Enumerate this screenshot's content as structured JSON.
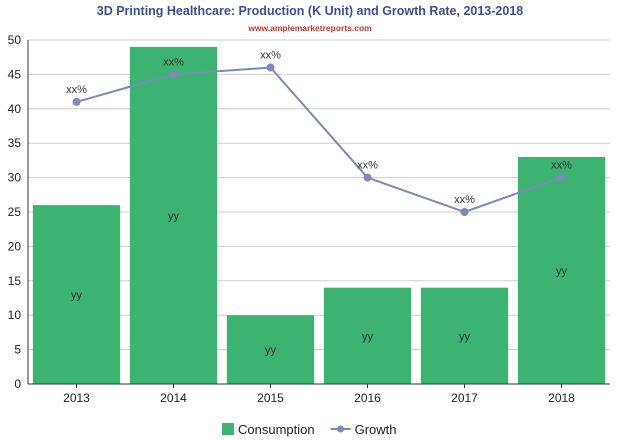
{
  "title": "3D Printing Healthcare: Production (K Unit) and Growth Rate, 2013-2018",
  "watermark": "www.amplemarketreports.com",
  "colors": {
    "bar": "#3cb371",
    "line": "#7b8ab8",
    "title": "#3d4f8f",
    "watermark": "#c0392b"
  },
  "legend": [
    {
      "label": "Consumption",
      "kind": "bar"
    },
    {
      "label": "Growth",
      "kind": "line"
    }
  ],
  "chart_data": {
    "type": "bar",
    "title": "3D Printing Healthcare: Production (K Unit) and Growth Rate, 2013-2018",
    "categories": [
      "2013",
      "2014",
      "2015",
      "2016",
      "2017",
      "2018"
    ],
    "ylim": [
      0,
      50
    ],
    "yticks": [
      0,
      5,
      10,
      15,
      20,
      25,
      30,
      35,
      40,
      45,
      50
    ],
    "grid": "horizontal",
    "legend_position": "bottom",
    "series": [
      {
        "name": "Consumption",
        "type": "bar",
        "values": [
          26,
          49,
          10,
          14,
          14,
          33
        ],
        "labels": [
          "yy",
          "yy",
          "yy",
          "yy",
          "yy",
          "yy"
        ]
      },
      {
        "name": "Growth",
        "type": "line",
        "values": [
          41,
          45,
          46,
          30,
          25,
          30
        ],
        "labels": [
          "xx%",
          "xx%",
          "xx%",
          "xx%",
          "xx%",
          "xx%"
        ]
      }
    ]
  }
}
